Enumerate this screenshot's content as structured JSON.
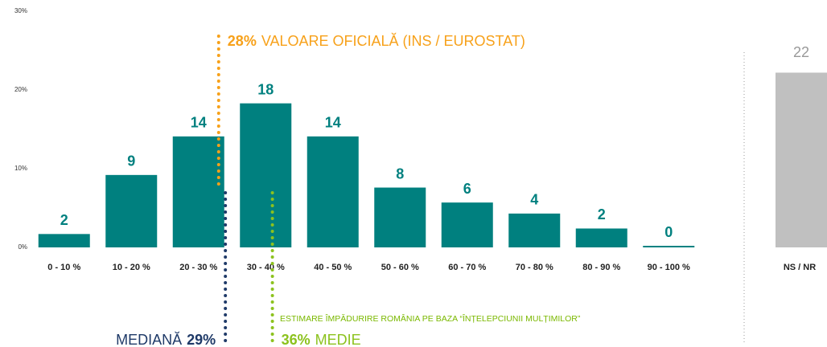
{
  "chart_data": {
    "type": "bar",
    "categories": [
      "0 - 10 %",
      "10 - 20 %",
      "20 - 30 %",
      "30 - 40 %",
      "40 - 50 %",
      "50 - 60 %",
      "60 - 70 %",
      "70 - 80 %",
      "80 - 90 %",
      "90 - 100 %"
    ],
    "values": [
      1.7,
      9.2,
      14.1,
      18.3,
      14.1,
      7.6,
      5.7,
      4.3,
      2.4,
      0.2
    ],
    "value_labels": [
      "2",
      "9",
      "14",
      "18",
      "14",
      "8",
      "6",
      "4",
      "2",
      "0"
    ],
    "color": "#00807f",
    "ylim": [
      0,
      30
    ],
    "yticks": [
      {
        "value": 0,
        "label": "0%"
      },
      {
        "value": 10,
        "label": "10%"
      },
      {
        "value": 20,
        "label": "20%"
      },
      {
        "value": 30,
        "label": "30%"
      }
    ],
    "xlim": [
      0,
      100
    ],
    "extra_bar": {
      "category": "NS / NR",
      "value": 22.2,
      "value_label": "22",
      "color": "#c0c0c0"
    },
    "annotations": [
      {
        "x": 28,
        "color": "#f7a11a",
        "line_span": "upper",
        "text_side": "right",
        "parts": [
          {
            "text": "28%",
            "bold": true
          },
          {
            "text": "VALOARE OFICIALĂ (INS / EUROSTAT)",
            "bold": false
          }
        ]
      },
      {
        "x": 29,
        "color": "#1f3a68",
        "line_span": "lower",
        "text_side": "left",
        "parts": [
          {
            "text": "MEDIANĂ",
            "bold": false
          },
          {
            "text": "29%",
            "bold": true
          }
        ]
      },
      {
        "x": 36,
        "color": "#8cc21e",
        "line_span": "lower",
        "text_side": "right",
        "parts": [
          {
            "text": "36%",
            "bold": true
          },
          {
            "text": "MEDIE",
            "bold": false
          }
        ]
      }
    ],
    "note": "ESTIMARE ÎMPĂDURIRE ROMÂNIA PE BAZA “ÎNȚELEPCIUNII MULȚIMILOR”",
    "note_color": "#7ab800"
  }
}
